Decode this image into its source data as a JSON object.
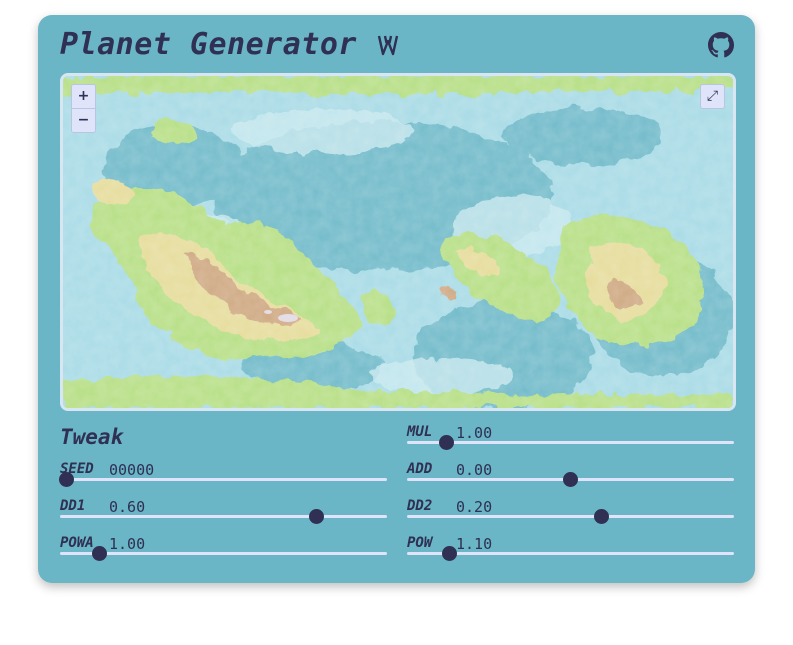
{
  "header": {
    "title": "Planet Generator",
    "logo_icon": "planet-w-logo-icon",
    "github_icon": "github-icon"
  },
  "map": {
    "zoom_in_label": "+",
    "zoom_out_label": "−",
    "fullscreen_label": "⤢",
    "colors": {
      "deep_water": "#6ab6c6",
      "shallow_water": "#a9dbe6",
      "lowland": "#b7df86",
      "hill": "#e6dc9c",
      "mountain": "#cfa983",
      "peak": "#e4e0ee"
    }
  },
  "tweak": {
    "title": "Tweak",
    "params": [
      {
        "key": "seed",
        "label": "SEED",
        "value": "00000",
        "position": 0.02
      },
      {
        "key": "mul",
        "label": "MUL",
        "value": "1.00",
        "position": 0.12
      },
      {
        "key": "dd1",
        "label": "DD1",
        "value": "0.60",
        "position": 0.785
      },
      {
        "key": "add",
        "label": "ADD",
        "value": "0.00",
        "position": 0.5
      },
      {
        "key": "powa",
        "label": "POWA",
        "value": "1.00",
        "position": 0.12
      },
      {
        "key": "dd2",
        "label": "DD2",
        "value": "0.20",
        "position": 0.595
      },
      {
        "key": "pow",
        "label": "POW",
        "value": "1.10",
        "position": 0.13
      }
    ]
  },
  "colors": {
    "card_bg": "#6ab6c6",
    "ink": "#2f3053",
    "track": "#dfe4fb"
  }
}
